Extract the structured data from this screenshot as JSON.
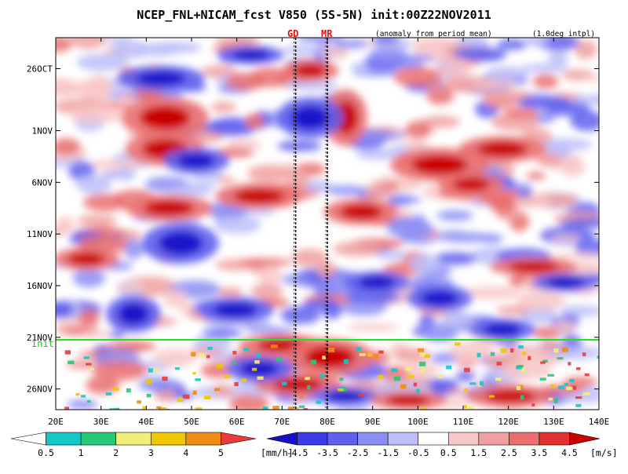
{
  "title": "NCEP_FNL+NICAM_fcst V850 (5S-5N) init:00Z22NOV2011",
  "subtitle_left": "(anomaly from period mean)",
  "subtitle_right": "(1.0deg intpl)",
  "markers": {
    "gd": "GD",
    "mr": "MR",
    "init": "init"
  },
  "chart_data": {
    "type": "heatmap",
    "title": "NCEP_FNL+NICAM_fcst V850 (5S-5N) init:00Z22NOV2011",
    "variable": "V850 anomaly (5S-5N)",
    "x_axis": {
      "ticks": [
        "20E",
        "30E",
        "40E",
        "50E",
        "60E",
        "70E",
        "80E",
        "90E",
        "100E",
        "110E",
        "120E",
        "130E",
        "140E"
      ],
      "values": [
        20,
        30,
        40,
        50,
        60,
        70,
        80,
        90,
        100,
        110,
        120,
        130,
        140
      ],
      "range": [
        20,
        140
      ],
      "unit": "degrees east"
    },
    "y_axis": {
      "ticks": [
        "26OCT",
        "1NOV",
        "6NOV",
        "11NOV",
        "16NOV",
        "21NOV",
        "26NOV"
      ],
      "values": [
        "2011-10-26",
        "2011-11-01",
        "2011-11-06",
        "2011-11-11",
        "2011-11-16",
        "2011-11-21",
        "2011-11-26"
      ],
      "range": [
        "2011-10-23",
        "2011-11-28"
      ],
      "direction": "time increases downward"
    },
    "init_time": "2011-11-22 00Z",
    "vertical_lines": [
      {
        "label": "GD",
        "lon": 73
      },
      {
        "label": "MR",
        "lon": 80
      }
    ],
    "wind_colorbar": {
      "unit": "[m/s]",
      "labels": [
        "-4.5",
        "-3.5",
        "-2.5",
        "-1.5",
        "-0.5",
        "0.5",
        "1.5",
        "2.5",
        "3.5",
        "4.5"
      ],
      "values": [
        -4.5,
        -3.5,
        -2.5,
        -1.5,
        -0.5,
        0.5,
        1.5,
        2.5,
        3.5,
        4.5
      ],
      "colors": [
        "#1a0fc8",
        "#3a3ae6",
        "#6060ee",
        "#8c8ef4",
        "#bcbef8",
        "#ffffff",
        "#f8c8c8",
        "#f0a0a0",
        "#ea7070",
        "#e03030",
        "#c80000"
      ]
    },
    "rain_colorbar": {
      "unit": "[mm/h]",
      "labels": [
        "0.5",
        "1",
        "2",
        "3",
        "4",
        "5"
      ],
      "values": [
        0.5,
        1,
        2,
        3,
        4,
        5
      ],
      "colors": [
        "#ffffff",
        "#14c8c8",
        "#28c878",
        "#f0f078",
        "#f0c800",
        "#f08c14",
        "#e83c3c"
      ]
    }
  }
}
